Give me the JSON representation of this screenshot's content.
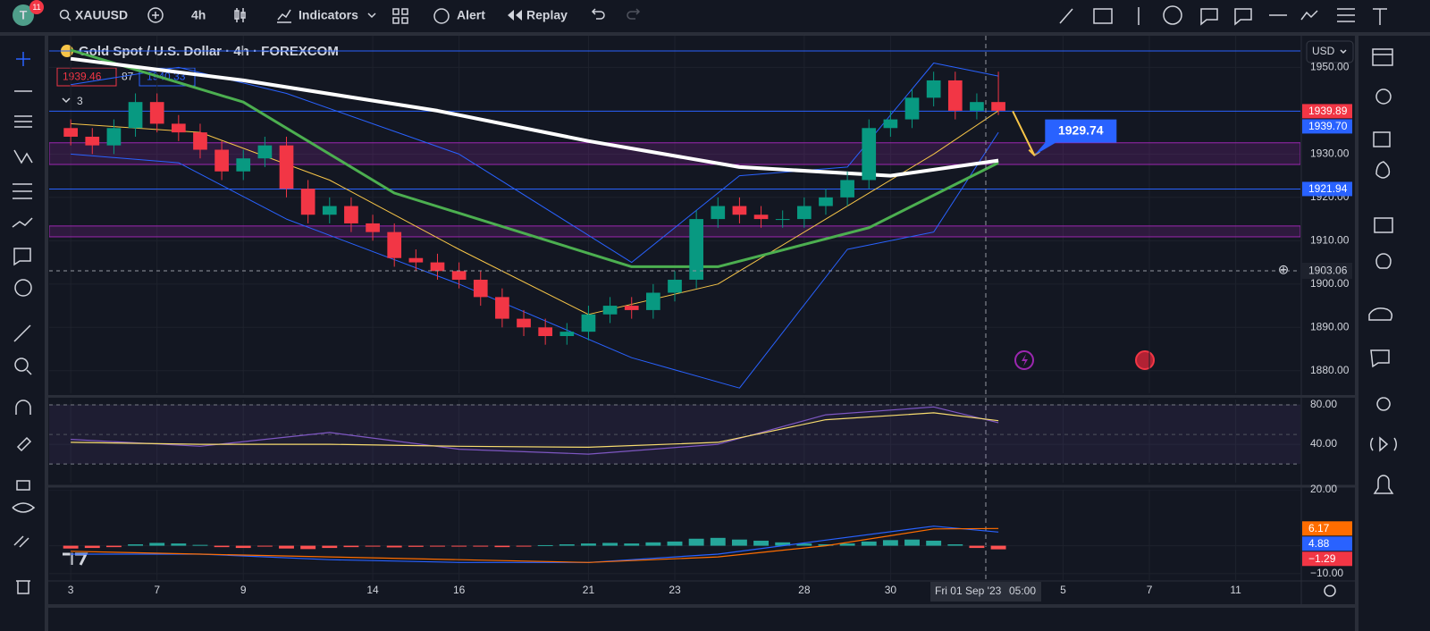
{
  "toolbar": {
    "avatar": "T",
    "badge": "11",
    "symbol": "XAUUSD",
    "interval": "4h",
    "indicators": "Indicators",
    "alert": "Alert",
    "replay": "Replay"
  },
  "currency": "USD",
  "chart_data": [
    {
      "type": "candlestick",
      "title": "Gold Spot / U.S. Dollar · 4h · FOREXCOM",
      "quote": {
        "bid": 1939.46,
        "spread": 87,
        "ask": 1940.33,
        "hidden_indicators": 3
      },
      "xlim": [
        "2023-08-02 12:00",
        "2023-09-12 12:00"
      ],
      "ylim": [
        1874.8,
        1957.3
      ],
      "yticks": [
        {
          "value": 1880,
          "label": "1880.00"
        },
        {
          "value": 1890,
          "label": "1890.00"
        },
        {
          "value": 1900,
          "label": "1900.00"
        },
        {
          "value": 1910,
          "label": "1910.00"
        },
        {
          "value": 1920,
          "label": "1920.00"
        },
        {
          "value": 1930,
          "label": "1930.00"
        },
        {
          "value": 1950,
          "label": "1950.00"
        }
      ],
      "up_color": "#089981",
      "down_color": "#f23645",
      "x": [
        "2023-08-03 00:00",
        "2023-08-03 12:00",
        "2023-08-04 00:00",
        "2023-08-04 12:00",
        "2023-08-07 00:00",
        "2023-08-07 12:00",
        "2023-08-08 00:00",
        "2023-08-08 12:00",
        "2023-08-09 00:00",
        "2023-08-09 12:00",
        "2023-08-10 00:00",
        "2023-08-10 12:00",
        "2023-08-11 00:00",
        "2023-08-11 12:00",
        "2023-08-14 00:00",
        "2023-08-14 12:00",
        "2023-08-15 00:00",
        "2023-08-15 12:00",
        "2023-08-16 00:00",
        "2023-08-16 12:00",
        "2023-08-17 00:00",
        "2023-08-17 12:00",
        "2023-08-18 00:00",
        "2023-08-18 12:00",
        "2023-08-21 00:00",
        "2023-08-21 12:00",
        "2023-08-22 00:00",
        "2023-08-22 12:00",
        "2023-08-23 00:00",
        "2023-08-23 12:00",
        "2023-08-24 00:00",
        "2023-08-24 12:00",
        "2023-08-25 00:00",
        "2023-08-25 12:00",
        "2023-08-28 00:00",
        "2023-08-28 12:00",
        "2023-08-29 00:00",
        "2023-08-29 12:00",
        "2023-08-30 00:00",
        "2023-08-30 12:00",
        "2023-08-31 00:00",
        "2023-08-31 12:00",
        "2023-09-01 00:00",
        "2023-09-01 12:00"
      ],
      "open": [
        1936,
        1934,
        1932,
        1936,
        1942,
        1937,
        1935,
        1931,
        1926,
        1929,
        1932,
        1922,
        1916,
        1918,
        1914,
        1912,
        1906,
        1905,
        1903,
        1901,
        1897,
        1892,
        1890,
        1888,
        1889,
        1893,
        1895,
        1894,
        1898,
        1901,
        1915,
        1918,
        1916,
        1915,
        1915,
        1918,
        1920,
        1924,
        1936,
        1938,
        1943,
        1947,
        1940,
        1942
      ],
      "high": [
        1938,
        1936,
        1938,
        1944,
        1944,
        1939,
        1937,
        1933,
        1931,
        1934,
        1934,
        1924,
        1920,
        1920,
        1916,
        1914,
        1908,
        1907,
        1905,
        1903,
        1899,
        1894,
        1892,
        1891,
        1895,
        1897,
        1897,
        1900,
        1903,
        1917,
        1920,
        1920,
        1918,
        1917,
        1920,
        1922,
        1926,
        1938,
        1940,
        1945,
        1949,
        1949,
        1944,
        1949
      ],
      "low": [
        1932,
        1930,
        1930,
        1934,
        1935,
        1933,
        1929,
        1924,
        1924,
        1927,
        1920,
        1914,
        1914,
        1912,
        1910,
        1904,
        1903,
        1901,
        1899,
        1895,
        1890,
        1888,
        1886,
        1886,
        1887,
        1891,
        1892,
        1892,
        1896,
        1899,
        1913,
        1914,
        1913,
        1913,
        1913,
        1916,
        1918,
        1922,
        1934,
        1936,
        1941,
        1938,
        1938,
        1939
      ],
      "close": [
        1934,
        1932,
        1936,
        1942,
        1937,
        1935,
        1931,
        1926,
        1929,
        1932,
        1922,
        1916,
        1918,
        1914,
        1912,
        1906,
        1905,
        1903,
        1901,
        1897,
        1892,
        1890,
        1888,
        1889,
        1893,
        1895,
        1894,
        1898,
        1901,
        1915,
        1918,
        1916,
        1915,
        1915,
        1918,
        1920,
        1924,
        1936,
        1938,
        1943,
        1947,
        1940,
        1942,
        1940
      ],
      "overlays": [
        {
          "color": "#2962ff",
          "width": 1,
          "x": [
            "2023-08-03 00:00",
            "2023-08-07 12:00",
            "2023-08-10 00:00",
            "2023-08-16 00:00",
            "2023-08-22 00:00",
            "2023-08-24 12:00",
            "2023-08-29 00:00",
            "2023-08-31 00:00",
            "2023-09-01 12:00"
          ],
          "values": [
            1946,
            1950,
            1944,
            1930,
            1905,
            1925,
            1927,
            1951,
            1948
          ]
        },
        {
          "color": "#2962ff",
          "width": 1,
          "x": [
            "2023-08-03 00:00",
            "2023-08-07 12:00",
            "2023-08-10 00:00",
            "2023-08-16 00:00",
            "2023-08-22 00:00",
            "2023-08-24 12:00",
            "2023-08-29 00:00",
            "2023-08-31 00:00",
            "2023-09-01 12:00"
          ],
          "values": [
            1930,
            1928,
            1915,
            1900,
            1883,
            1876,
            1908,
            1912,
            1935
          ]
        },
        {
          "color": "#f7c548",
          "width": 1,
          "x": [
            "2023-08-03 00:00",
            "2023-08-08 00:00",
            "2023-08-11 00:00",
            "2023-08-16 00:00",
            "2023-08-21 00:00",
            "2023-08-24 00:00",
            "2023-08-28 12:00",
            "2023-08-31 00:00",
            "2023-09-01 12:00"
          ],
          "values": [
            1937,
            1935,
            1924,
            1908,
            1893,
            1900,
            1915,
            1930,
            1940
          ]
        },
        {
          "color": "#4caf50",
          "width": 3,
          "x": [
            "2023-08-03 00:00",
            "2023-08-09 00:00",
            "2023-08-14 12:00",
            "2023-08-22 00:00",
            "2023-08-24 00:00",
            "2023-08-29 12:00",
            "2023-09-01 12:00"
          ],
          "values": [
            1954,
            1942,
            1921,
            1904,
            1904,
            1913,
            1928
          ]
        },
        {
          "color": "#ffffff",
          "width": 4,
          "x": [
            "2023-08-03 00:00",
            "2023-08-09 00:00",
            "2023-08-15 12:00",
            "2023-08-21 00:00",
            "2023-08-24 12:00",
            "2023-08-30 00:00",
            "2023-09-01 12:00"
          ],
          "values": [
            1952,
            1947,
            1940,
            1933,
            1927,
            1925,
            1928.5
          ]
        }
      ],
      "levels": [
        {
          "value": 1953.8,
          "color": "#2962ff"
        },
        {
          "value": 1939.89,
          "color": "#2962ff"
        },
        {
          "value": 1921.94,
          "color": "#2962ff"
        }
      ],
      "zones": [
        {
          "from": 1927.6,
          "to": 1932.6,
          "color": "#9c27b0"
        },
        {
          "from": 1910.9,
          "to": 1913.4,
          "color": "#9c27b0"
        }
      ],
      "price_labels": [
        {
          "value": 1939.89,
          "color": "#f23645"
        },
        {
          "value": 1939.7,
          "label": "1939.70",
          "color": "#2962ff"
        },
        {
          "value": 1921.94,
          "color": "#2962ff"
        }
      ],
      "crosshair": {
        "x": "2023-09-01 05:00",
        "y": 1903.06,
        "x_label": "Fri 01 Sep '23",
        "time_label": "05:00"
      },
      "forecast": {
        "x0": "2023-09-01 20:00",
        "y0": 1939.89,
        "x1": "2023-09-04 08:00",
        "y1": 1929.74,
        "color": "#f7c548",
        "label_color": "#2962ff"
      }
    },
    {
      "type": "line",
      "xlim": [
        "2023-08-02 12:00",
        "2023-09-12 12:00"
      ],
      "ylim": [
        1,
        85.5
      ],
      "yticks": [
        {
          "value": 80,
          "label": "80.00"
        },
        {
          "value": 40,
          "label": "40.00"
        }
      ],
      "band": [
        20,
        80
      ],
      "midline": 50,
      "x": [
        "2023-08-03 00:00",
        "2023-08-08 00:00",
        "2023-08-11 00:00",
        "2023-08-16 00:00",
        "2023-08-21 00:00",
        "2023-08-24 00:00",
        "2023-08-28 12:00",
        "2023-08-31 00:00",
        "2023-09-01 12:00"
      ],
      "series": [
        {
          "color": "#7e57c2",
          "values": [
            45,
            38,
            52,
            35,
            30,
            40,
            70,
            78,
            62
          ]
        },
        {
          "color": "#f7dc6f",
          "values": [
            42,
            40,
            40,
            38,
            37,
            42,
            65,
            72,
            64
          ]
        }
      ]
    },
    {
      "type": "line",
      "xlim": [
        "2023-08-02 12:00",
        "2023-09-12 12:00"
      ],
      "ylim": [
        -12.6,
        20
      ],
      "yticks": [
        {
          "value": 20,
          "label": "20.00"
        },
        {
          "value": 0,
          "label": "0.00"
        },
        {
          "value": -10,
          "label": "−10.00"
        }
      ],
      "x": [
        "2023-08-03 00:00",
        "2023-08-08 00:00",
        "2023-08-11 00:00",
        "2023-08-16 00:00",
        "2023-08-21 00:00",
        "2023-08-24 00:00",
        "2023-08-28 12:00",
        "2023-08-31 00:00",
        "2023-09-01 12:00"
      ],
      "series": [
        {
          "color": "#2962ff",
          "values": [
            -3,
            -3,
            -5,
            -6,
            -6,
            -3,
            2,
            7,
            4.88
          ]
        },
        {
          "color": "#ff6d00",
          "values": [
            -2,
            -3,
            -4,
            -5,
            -6,
            -4,
            0,
            6,
            6.17
          ]
        }
      ],
      "histogram": {
        "up_color": "#26a69a",
        "down_color": "#ff5252",
        "x": [
          "2023-08-03 00:00",
          "2023-08-03 12:00",
          "2023-08-04 00:00",
          "2023-08-04 12:00",
          "2023-08-07 00:00",
          "2023-08-07 12:00",
          "2023-08-08 00:00",
          "2023-08-08 12:00",
          "2023-08-09 00:00",
          "2023-08-09 12:00",
          "2023-08-10 00:00",
          "2023-08-10 12:00",
          "2023-08-11 00:00",
          "2023-08-11 12:00",
          "2023-08-14 00:00",
          "2023-08-14 12:00",
          "2023-08-15 00:00",
          "2023-08-15 12:00",
          "2023-08-16 00:00",
          "2023-08-16 12:00",
          "2023-08-17 00:00",
          "2023-08-17 12:00",
          "2023-08-18 00:00",
          "2023-08-18 12:00",
          "2023-08-21 00:00",
          "2023-08-21 12:00",
          "2023-08-22 00:00",
          "2023-08-22 12:00",
          "2023-08-23 00:00",
          "2023-08-23 12:00",
          "2023-08-24 00:00",
          "2023-08-24 12:00",
          "2023-08-25 00:00",
          "2023-08-25 12:00",
          "2023-08-28 00:00",
          "2023-08-28 12:00",
          "2023-08-29 00:00",
          "2023-08-29 12:00",
          "2023-08-30 00:00",
          "2023-08-30 12:00",
          "2023-08-31 00:00",
          "2023-08-31 12:00",
          "2023-09-01 00:00",
          "2023-09-01 12:00"
        ],
        "values": [
          -1,
          -0.8,
          -0.5,
          0.5,
          1,
          0.8,
          0.3,
          -0.5,
          -0.8,
          -0.3,
          -1,
          -1.2,
          -0.8,
          -0.5,
          -0.3,
          -0.6,
          -0.4,
          -0.2,
          -0.1,
          -0.3,
          -0.5,
          -0.2,
          0.2,
          0.5,
          0.8,
          1,
          0.8,
          1.2,
          1.5,
          2.5,
          2.8,
          2.2,
          1.8,
          1.2,
          0.8,
          0.5,
          0.8,
          1.5,
          2,
          2.2,
          1.8,
          0.5,
          -0.8,
          -1.29
        ]
      },
      "last_labels": [
        {
          "value": 6.17,
          "color": "#ff6d00"
        },
        {
          "value": 4.88,
          "color": "#2962ff"
        },
        {
          "value": -1.29,
          "label": "−1.29",
          "color": "#f23645"
        }
      ],
      "xticks": [
        {
          "value": "2023-08-03",
          "label": "3"
        },
        {
          "value": "2023-08-07",
          "label": "7"
        },
        {
          "value": "2023-08-09",
          "label": "9"
        },
        {
          "value": "2023-08-14",
          "label": "14"
        },
        {
          "value": "2023-08-16",
          "label": "16"
        },
        {
          "value": "2023-08-21",
          "label": "21"
        },
        {
          "value": "2023-08-23",
          "label": "23"
        },
        {
          "value": "2023-08-28",
          "label": "28"
        },
        {
          "value": "2023-08-30",
          "label": "30"
        },
        {
          "value": "2023-09-05",
          "label": "5"
        },
        {
          "value": "2023-09-07",
          "label": "7"
        },
        {
          "value": "2023-09-11",
          "label": "11"
        }
      ]
    }
  ]
}
